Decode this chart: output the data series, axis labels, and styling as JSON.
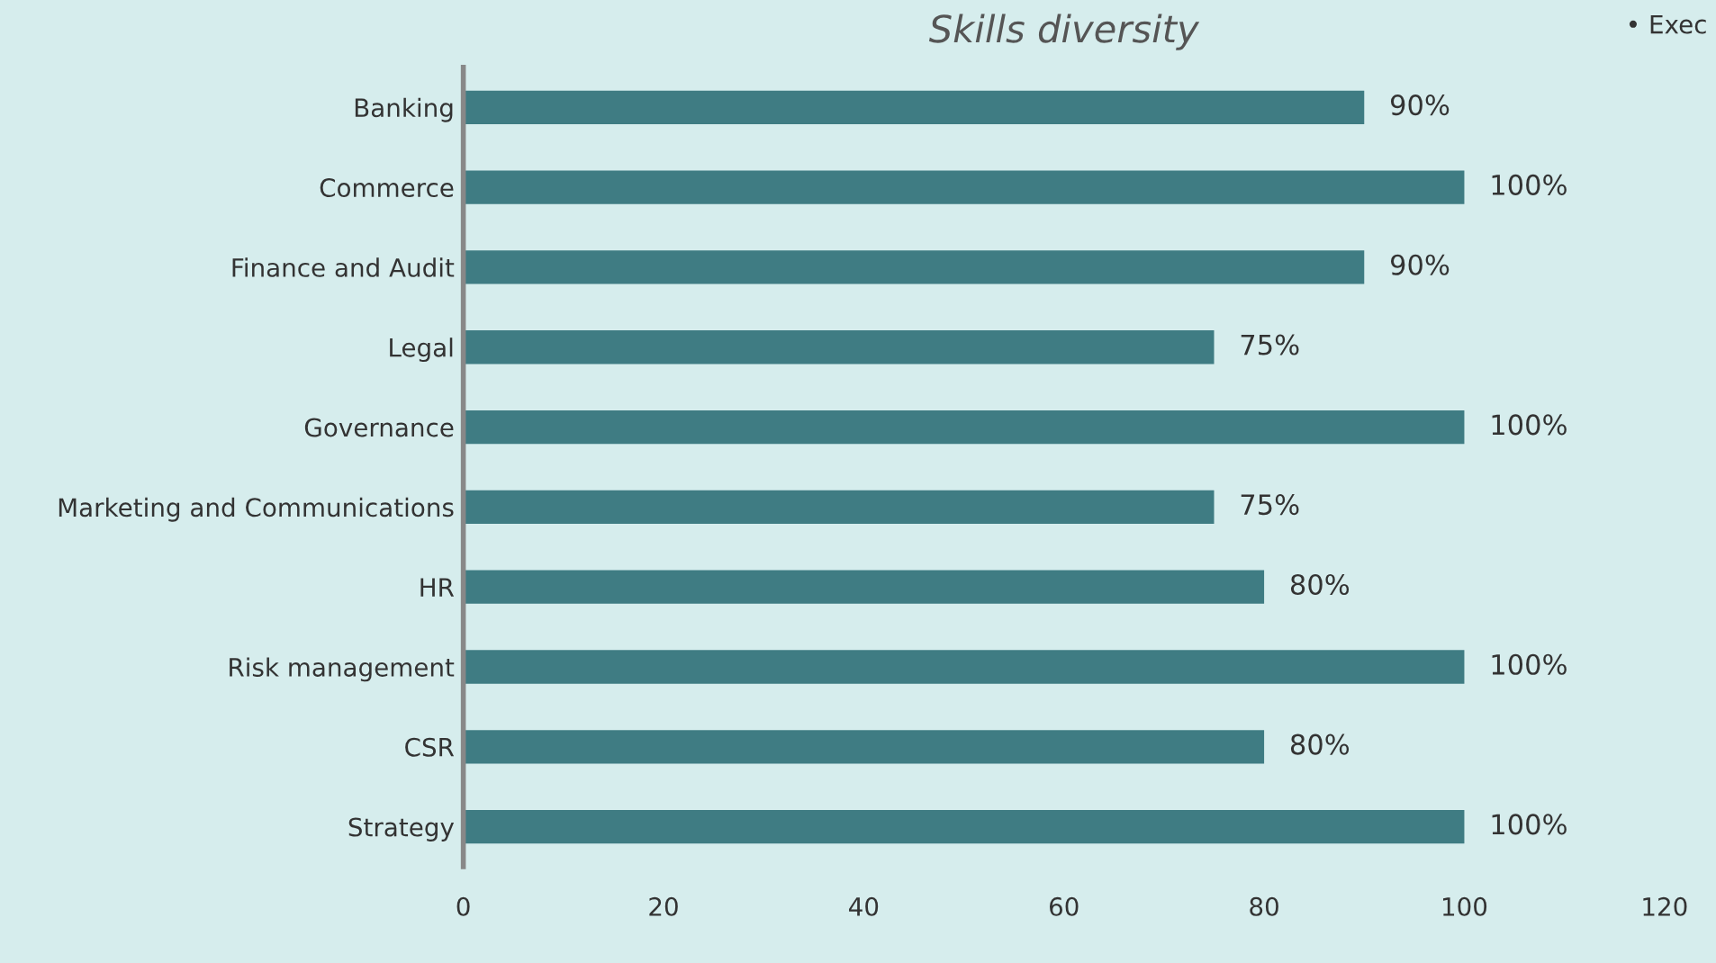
{
  "chart_data": {
    "type": "bar",
    "orientation": "horizontal",
    "title": "Skills diversity",
    "categories": [
      "Banking",
      "Commerce",
      "Finance and Audit",
      "Legal",
      "Governance",
      "Marketing and Communications",
      "HR",
      "Risk management",
      "CSR",
      "Strategy"
    ],
    "values": [
      90,
      100,
      90,
      75,
      100,
      75,
      80,
      100,
      80,
      100
    ],
    "value_labels": [
      "90%",
      "100%",
      "90%",
      "75%",
      "100%",
      "75%",
      "80%",
      "100%",
      "80%",
      "100%"
    ],
    "color": "#3f7c83",
    "xlim": [
      0,
      120
    ],
    "xticks": [
      0,
      20,
      40,
      60,
      80,
      100,
      120
    ],
    "grid": false,
    "annotations": [
      "• Exec"
    ]
  }
}
